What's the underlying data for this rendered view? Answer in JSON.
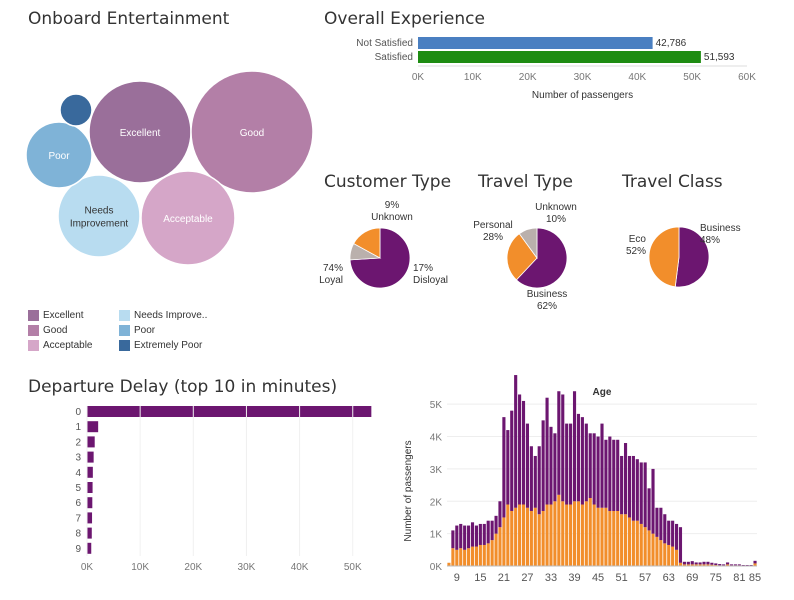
{
  "colors": {
    "excellent": "#9a6f9a",
    "good": "#b37fa7",
    "acceptable": "#d5a6c8",
    "needs_improvement": "#b8dcf0",
    "poor": "#7fb3d7",
    "extremely_poor": "#39699c",
    "purple": "#6c1670",
    "orange": "#f28e2b",
    "gray": "#bab0ac",
    "blue_bar": "#4a7fc1",
    "green_bar": "#1e8c12"
  },
  "titles": {
    "entertainment": "Onboard Entertainment",
    "experience": "Overall Experience",
    "customer_type": "Customer Type",
    "travel_type": "Travel Type",
    "travel_class": "Travel Class",
    "delay": "Departure Delay (top 10 in minutes)"
  },
  "chart_data": [
    {
      "type": "bubble",
      "title": "Onboard Entertainment",
      "bubbles": [
        {
          "label": "Excellent",
          "key": "excellent"
        },
        {
          "label": "Good",
          "key": "good"
        },
        {
          "label": "Acceptable",
          "key": "acceptable"
        },
        {
          "label": "Needs Improvement",
          "key": "needs_improvement"
        },
        {
          "label": "Poor",
          "key": "poor"
        },
        {
          "label": "",
          "key": "extremely_poor"
        }
      ],
      "legend": [
        {
          "label": "Excellent",
          "key": "excellent"
        },
        {
          "label": "Good",
          "key": "good"
        },
        {
          "label": "Acceptable",
          "key": "acceptable"
        },
        {
          "label": "Needs Improve..",
          "key": "needs_improvement"
        },
        {
          "label": "Poor",
          "key": "poor"
        },
        {
          "label": "Extremely Poor",
          "key": "extremely_poor"
        }
      ]
    },
    {
      "type": "bar",
      "orientation": "horizontal",
      "title": "Overall Experience",
      "categories": [
        "Not Satisfied",
        "Satisfied"
      ],
      "values": [
        42786,
        51593
      ],
      "value_labels": [
        "42,786",
        "51,593"
      ],
      "xlabel": "Number of passengers",
      "xlim": [
        0,
        60000
      ],
      "xticks": [
        "0K",
        "10K",
        "20K",
        "30K",
        "40K",
        "50K",
        "60K"
      ]
    },
    {
      "type": "pie",
      "title": "Customer Type",
      "slices": [
        {
          "name": "Loyal",
          "percent": 74,
          "label": "74%",
          "color": "purple"
        },
        {
          "name": "Unknown",
          "percent": 9,
          "label": "9%",
          "color": "gray"
        },
        {
          "name": "Disloyal",
          "percent": 17,
          "label": "17%",
          "color": "orange"
        }
      ]
    },
    {
      "type": "pie",
      "title": "Travel Type",
      "slices": [
        {
          "name": "Business",
          "percent": 62,
          "label": "62%",
          "color": "purple"
        },
        {
          "name": "Personal",
          "percent": 28,
          "label": "28%",
          "color": "orange"
        },
        {
          "name": "Unknown",
          "percent": 10,
          "label": "10%",
          "color": "gray"
        }
      ]
    },
    {
      "type": "pie",
      "title": "Travel Class",
      "slices": [
        {
          "name": "Eco",
          "percent": 52,
          "label": "52%",
          "color": "purple"
        },
        {
          "name": "Business",
          "percent": 48,
          "label": "48%",
          "color": "orange"
        }
      ]
    },
    {
      "type": "bar",
      "orientation": "horizontal",
      "title": "Departure Delay (top 10 in minutes)",
      "categories": [
        "0",
        "1",
        "2",
        "3",
        "4",
        "5",
        "6",
        "7",
        "8",
        "9"
      ],
      "values": [
        53500,
        2100,
        1450,
        1250,
        1100,
        1050,
        1000,
        950,
        900,
        800
      ],
      "xlim": [
        0,
        54000
      ],
      "xticks": [
        "0K",
        "10K",
        "20K",
        "30K",
        "40K",
        "50K"
      ]
    },
    {
      "type": "bar",
      "stacked": true,
      "title": "Age",
      "ylabel": "Number of passengers",
      "x_start": 7,
      "ylim": [
        0,
        5500
      ],
      "yticks": [
        "0K",
        "1K",
        "2K",
        "3K",
        "4K",
        "5K"
      ],
      "xticks": [
        "9",
        "15",
        "21",
        "27",
        "33",
        "39",
        "45",
        "51",
        "57",
        "63",
        "69",
        "75",
        "81",
        "85"
      ],
      "series": [
        {
          "color": "orange",
          "values": [
            100,
            550,
            500,
            550,
            500,
            550,
            600,
            600,
            650,
            650,
            700,
            800,
            1000,
            1200,
            1500,
            1900,
            1700,
            1800,
            1900,
            1900,
            1800,
            1700,
            1800,
            1600,
            1700,
            1900,
            1900,
            2000,
            2200,
            2000,
            1900,
            1900,
            2000,
            2000,
            1900,
            2000,
            2100,
            1900,
            1800,
            1800,
            1800,
            1700,
            1700,
            1700,
            1600,
            1600,
            1500,
            1400,
            1400,
            1300,
            1200,
            1100,
            1000,
            900,
            800,
            700,
            650,
            600,
            500,
            100,
            50,
            50,
            50,
            50,
            50,
            50,
            50,
            40,
            30,
            20,
            20,
            50,
            20,
            20,
            20,
            10,
            10,
            10,
            80
          ]
        },
        {
          "color": "purple",
          "values": [
            0,
            550,
            750,
            750,
            750,
            700,
            750,
            650,
            650,
            650,
            700,
            600,
            550,
            800,
            3100,
            2300,
            3100,
            4100,
            3400,
            3200,
            2600,
            2000,
            1600,
            2100,
            2800,
            3300,
            2400,
            2100,
            3200,
            3300,
            2500,
            2500,
            3400,
            2700,
            2700,
            2400,
            2000,
            2200,
            2200,
            2600,
            2100,
            2300,
            2200,
            2200,
            1800,
            2200,
            1900,
            2000,
            1900,
            1900,
            2000,
            1300,
            2000,
            900,
            1000,
            900,
            750,
            800,
            800,
            1100,
            80,
            80,
            100,
            60,
            60,
            80,
            80,
            60,
            50,
            40,
            30,
            60,
            30,
            30,
            30,
            20,
            20,
            20,
            80
          ]
        }
      ]
    }
  ]
}
